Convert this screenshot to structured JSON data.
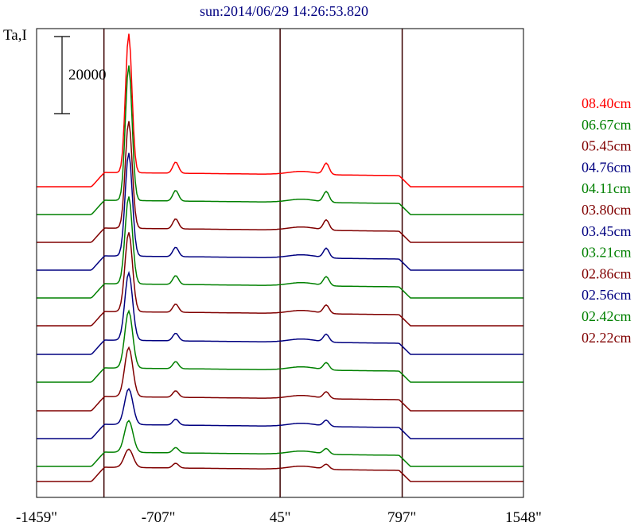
{
  "chart_data": {
    "type": "line",
    "title": "sun:2014/06/29 14:26:53.820",
    "ylabel": "Ta,I",
    "scale_bar_label": "20000",
    "scale_bar_value": 20000,
    "x_ticks": [
      -1459,
      -707,
      45,
      797,
      1548
    ],
    "x_tick_labels": [
      "-1459\"",
      "-707\"",
      "45\"",
      "797\"",
      "1548\""
    ],
    "xlim": [
      -1459,
      1548
    ],
    "vertical_markers": [
      -1043,
      45,
      799
    ],
    "grid": false,
    "legend_position": "right",
    "colors": {
      "red": "#ff0000",
      "green": "#008000",
      "maroon": "#800000",
      "blue": "#000080"
    },
    "series": [
      {
        "name": "08.40cm",
        "color": "#ff0000"
      },
      {
        "name": "06.67cm",
        "color": "#008000"
      },
      {
        "name": "05.45cm",
        "color": "#800000"
      },
      {
        "name": "04.76cm",
        "color": "#000080"
      },
      {
        "name": "04.11cm",
        "color": "#008000"
      },
      {
        "name": "03.80cm",
        "color": "#800000"
      },
      {
        "name": "03.45cm",
        "color": "#000080"
      },
      {
        "name": "03.21cm",
        "color": "#008000"
      },
      {
        "name": "02.86cm",
        "color": "#800000"
      },
      {
        "name": "02.56cm",
        "color": "#000080"
      },
      {
        "name": "02.42cm",
        "color": "#008000"
      },
      {
        "name": "02.22cm",
        "color": "#800000"
      }
    ]
  }
}
